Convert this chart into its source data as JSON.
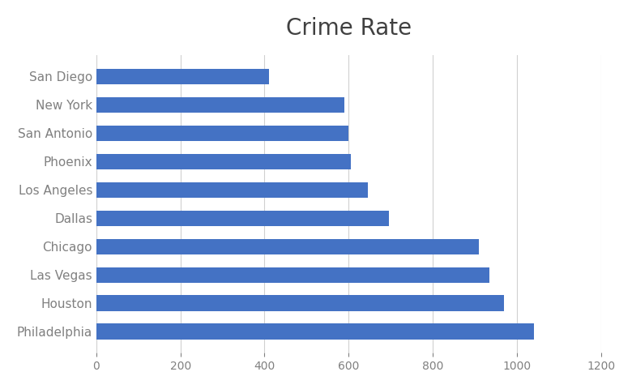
{
  "title": "Crime Rate",
  "title_fontsize": 20,
  "categories": [
    "Philadelphia",
    "Houston",
    "Las Vegas",
    "Chicago",
    "Dallas",
    "Los Angeles",
    "Phoenix",
    "San Antonio",
    "New York",
    "San Diego"
  ],
  "values": [
    1040,
    970,
    935,
    910,
    695,
    645,
    605,
    600,
    590,
    410
  ],
  "bar_color": "#4472C4",
  "bar_height": 0.55,
  "xlim": [
    0,
    1200
  ],
  "xticks": [
    0,
    200,
    400,
    600,
    800,
    1000,
    1200
  ],
  "xlabel": "",
  "ylabel": "",
  "background_color": "#ffffff",
  "grid_color": "#d0d0d0",
  "tick_label_color": "#808080",
  "title_color": "#404040",
  "figsize": [
    7.8,
    4.8
  ],
  "dpi": 100
}
